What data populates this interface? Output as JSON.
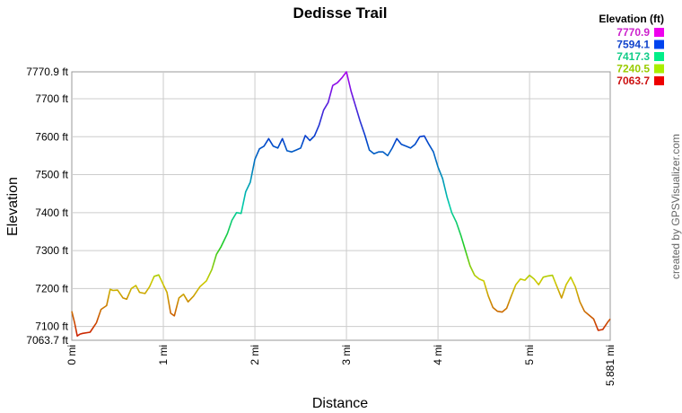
{
  "chart_data": {
    "type": "line",
    "title": "Dedisse Trail",
    "xlabel": "Distance",
    "ylabel": "Elevation",
    "xlim": [
      0,
      5.881
    ],
    "ylim": [
      7063.7,
      7770.9
    ],
    "x_unit": "mi",
    "y_unit": "ft",
    "x_ticks": [
      {
        "value": 0,
        "label": "0 mi"
      },
      {
        "value": 1,
        "label": "1 mi"
      },
      {
        "value": 2,
        "label": "2 mi"
      },
      {
        "value": 3,
        "label": "3 mi"
      },
      {
        "value": 4,
        "label": "4 mi"
      },
      {
        "value": 5,
        "label": "5 mi"
      },
      {
        "value": 5.881,
        "label": "5.881 mi"
      }
    ],
    "y_ticks": [
      {
        "value": 7063.7,
        "label": "7063.7 ft"
      },
      {
        "value": 7100,
        "label": "7100 ft"
      },
      {
        "value": 7200,
        "label": "7200 ft"
      },
      {
        "value": 7300,
        "label": "7300 ft"
      },
      {
        "value": 7400,
        "label": "7400 ft"
      },
      {
        "value": 7500,
        "label": "7500 ft"
      },
      {
        "value": 7600,
        "label": "7600 ft"
      },
      {
        "value": 7700,
        "label": "7700 ft"
      },
      {
        "value": 7770.9,
        "label": "7770.9 ft"
      }
    ],
    "grid": true,
    "legend": {
      "title": "Elevation (ft)",
      "position": "top-right",
      "entries": [
        {
          "label": "7770.9",
          "color": "#cc22cc",
          "swatch": "#ee00ee"
        },
        {
          "label": "7594.1",
          "color": "#1144cc",
          "swatch": "#0044ee"
        },
        {
          "label": "7417.3",
          "color": "#11cc88",
          "swatch": "#00ee88"
        },
        {
          "label": "7240.5",
          "color": "#99cc00",
          "swatch": "#aaee00"
        },
        {
          "label": "7063.7",
          "color": "#cc1111",
          "swatch": "#ee0000"
        }
      ]
    },
    "series": [
      {
        "x": [
          0,
          0.03,
          0.06,
          0.09,
          0.12,
          0.2,
          0.27,
          0.32,
          0.38,
          0.42,
          0.45,
          0.5,
          0.56,
          0.6,
          0.65,
          0.7,
          0.74,
          0.8,
          0.85,
          0.9,
          0.95,
          1.0,
          1.04,
          1.08,
          1.12,
          1.17,
          1.22,
          1.27,
          1.33,
          1.4,
          1.47,
          1.53,
          1.58,
          1.63,
          1.7,
          1.75,
          1.8,
          1.85,
          1.9,
          1.95,
          2.0,
          2.05,
          2.1,
          2.15,
          2.2,
          2.25,
          2.3,
          2.35,
          2.4,
          2.45,
          2.5,
          2.55,
          2.6,
          2.65,
          2.7,
          2.75,
          2.8,
          2.85,
          2.9,
          2.95,
          3.0,
          3.05,
          3.1,
          3.15,
          3.2,
          3.25,
          3.3,
          3.35,
          3.4,
          3.45,
          3.5,
          3.55,
          3.6,
          3.65,
          3.7,
          3.75,
          3.8,
          3.85,
          3.9,
          3.95,
          4.0,
          4.05,
          4.1,
          4.15,
          4.2,
          4.25,
          4.3,
          4.35,
          4.4,
          4.45,
          4.5,
          4.55,
          4.6,
          4.65,
          4.7,
          4.75,
          4.8,
          4.85,
          4.9,
          4.95,
          5.0,
          5.05,
          5.1,
          5.15,
          5.2,
          5.25,
          5.3,
          5.35,
          5.4,
          5.45,
          5.5,
          5.55,
          5.6,
          5.65,
          5.7,
          5.75,
          5.8,
          5.85,
          5.881
        ],
        "y": [
          7140,
          7110,
          7075,
          7080,
          7082,
          7085,
          7110,
          7145,
          7155,
          7198,
          7195,
          7196,
          7175,
          7172,
          7200,
          7208,
          7190,
          7187,
          7205,
          7232,
          7236,
          7210,
          7190,
          7135,
          7128,
          7175,
          7185,
          7165,
          7180,
          7205,
          7220,
          7250,
          7290,
          7310,
          7345,
          7380,
          7400,
          7398,
          7455,
          7480,
          7540,
          7568,
          7575,
          7595,
          7575,
          7570,
          7595,
          7563,
          7560,
          7565,
          7570,
          7603,
          7590,
          7602,
          7630,
          7670,
          7690,
          7735,
          7742,
          7755,
          7770.9,
          7720,
          7680,
          7640,
          7605,
          7565,
          7555,
          7560,
          7560,
          7550,
          7570,
          7595,
          7580,
          7575,
          7570,
          7580,
          7600,
          7602,
          7580,
          7560,
          7520,
          7490,
          7440,
          7400,
          7375,
          7340,
          7300,
          7260,
          7235,
          7225,
          7220,
          7180,
          7150,
          7140,
          7138,
          7148,
          7180,
          7210,
          7225,
          7222,
          7235,
          7225,
          7210,
          7230,
          7233,
          7235,
          7205,
          7175,
          7210,
          7230,
          7205,
          7165,
          7140,
          7130,
          7120,
          7090,
          7092,
          7110,
          7120
        ]
      }
    ]
  },
  "credit": "created by GPSVisualizer.com"
}
